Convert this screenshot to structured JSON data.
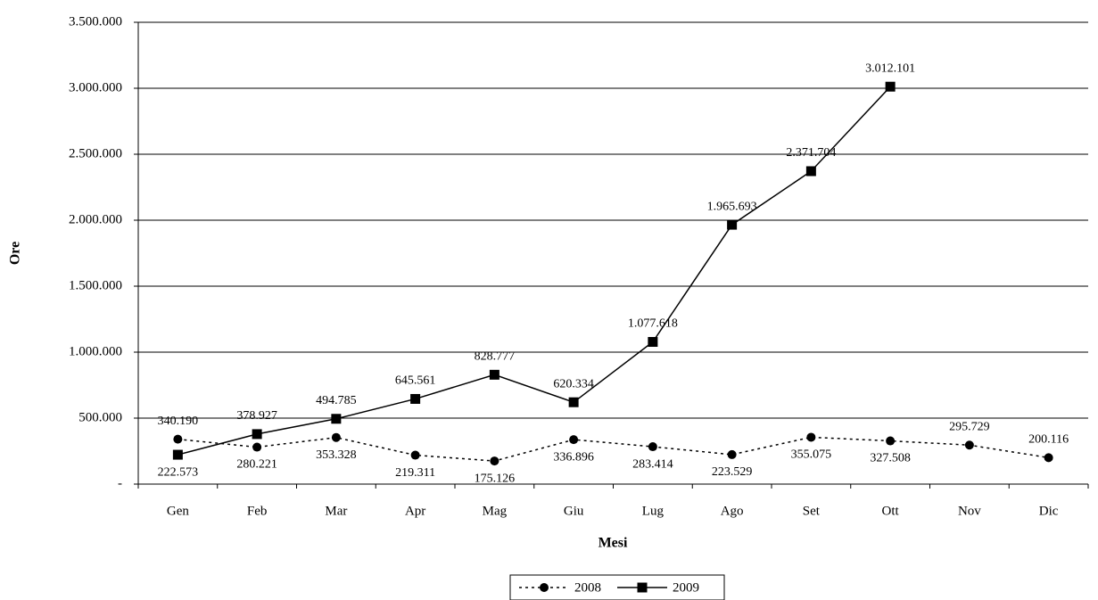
{
  "chart_data": {
    "type": "line",
    "x_label": "Mesi",
    "y_label": "Ore",
    "categories": [
      "Gen",
      "Feb",
      "Mar",
      "Apr",
      "Mag",
      "Giu",
      "Lug",
      "Ago",
      "Set",
      "Ott",
      "Nov",
      "Dic"
    ],
    "series": [
      {
        "name": "2008",
        "color": "#000000",
        "dash": "dotted",
        "marker": "circle",
        "values": [
          340190,
          280221,
          353328,
          219311,
          175126,
          336896,
          283414,
          223529,
          355075,
          327508,
          295729,
          200116
        ],
        "value_labels": [
          "340.190",
          "280.221",
          "353.328",
          "219.311",
          "175.126",
          "336.896",
          "283.414",
          "223.529",
          "355.075",
          "327.508",
          "295.729",
          "200.116"
        ]
      },
      {
        "name": "2009",
        "color": "#000000",
        "dash": "solid",
        "marker": "square",
        "values": [
          222573,
          378927,
          494785,
          645561,
          828777,
          620334,
          1077618,
          1965693,
          2371704,
          3012101,
          null,
          null
        ],
        "value_labels": [
          "222.573",
          "378.927",
          "494.785",
          "645.561",
          "828.777",
          "620.334",
          "1.077.618",
          "1.965.693",
          "2.371.704",
          "3.012.101",
          null,
          null
        ]
      }
    ],
    "ylim": [
      0,
      3500000
    ],
    "yticks": [
      {
        "value": 0,
        "label": "-"
      },
      {
        "value": 500000,
        "label": "500.000"
      },
      {
        "value": 1000000,
        "label": "1.000.000"
      },
      {
        "value": 1500000,
        "label": "1.500.000"
      },
      {
        "value": 2000000,
        "label": "2.000.000"
      },
      {
        "value": 2500000,
        "label": "2.500.000"
      },
      {
        "value": 3000000,
        "label": "3.000.000"
      },
      {
        "value": 3500000,
        "label": "3.500.000"
      }
    ],
    "grid": true,
    "legend": "bottom"
  }
}
